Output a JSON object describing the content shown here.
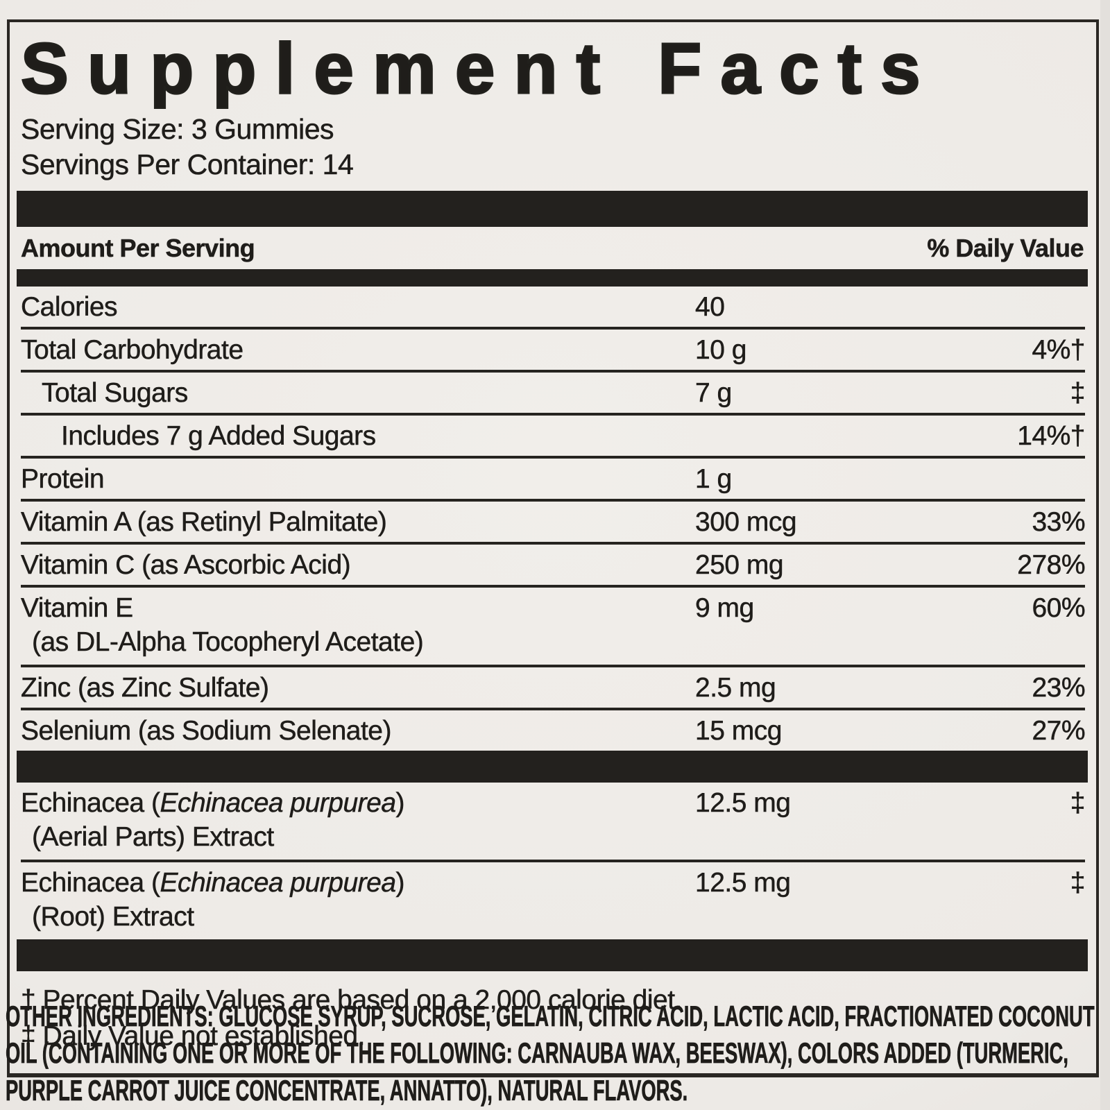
{
  "colors": {
    "ink": "#1f1d1a",
    "bar": "#23211e",
    "background": "#edeae6"
  },
  "panel": {
    "title": "Supplement Facts",
    "serving_size": "Serving Size: 3 Gummies",
    "servings_per_container": "Servings Per Container: 14",
    "header_left": "Amount Per Serving",
    "header_right": "% Daily Value",
    "rows": [
      {
        "label": "Calories",
        "amount": "40",
        "dv": ""
      },
      {
        "label": "Total Carbohydrate",
        "amount": "10 g",
        "dv": "4%†"
      },
      {
        "label": "Total Sugars",
        "indent": 1,
        "amount": "7 g",
        "dv": "‡"
      },
      {
        "label": "Includes 7 g Added Sugars",
        "indent": 2,
        "amount": "",
        "dv": "14%†"
      },
      {
        "label": "Protein",
        "amount": "1 g",
        "dv": ""
      },
      {
        "label": "Vitamin A (as Retinyl Palmitate)",
        "amount": "300 mcg",
        "dv": "33%"
      },
      {
        "label": "Vitamin C (as Ascorbic Acid)",
        "amount": "250 mg",
        "dv": "278%"
      },
      {
        "label": "Vitamin E",
        "sub": "(as DL-Alpha Tocopheryl Acetate)",
        "amount": "9 mg",
        "dv": "60%"
      },
      {
        "label": "Zinc (as Zinc Sulfate)",
        "amount": "2.5 mg",
        "dv": "23%"
      },
      {
        "label": "Selenium (as Sodium Selenate)",
        "amount": "15 mcg",
        "dv": "27%",
        "section_end": true
      },
      {
        "label_pre": "Echinacea (",
        "label_italic": "Echinacea purpurea",
        "label_post": ")",
        "sub": "(Aerial Parts) Extract",
        "amount": "12.5 mg",
        "dv": "‡"
      },
      {
        "label_pre": "Echinacea (",
        "label_italic": "Echinacea purpurea",
        "label_post": ")",
        "sub": "(Root) Extract",
        "amount": "12.5 mg",
        "dv": "‡",
        "section_end": true
      }
    ],
    "footnotes": [
      "† Percent Daily Values are based on a 2,000 calorie diet.",
      "‡ Daily Value not established."
    ]
  },
  "other_ingredients": {
    "lead": "OTHER INGREDIENTS:",
    "text": " GLUCOSE SYRUP, SUCROSE, GELATIN, CITRIC ACID, LACTIC ACID, FRACTIONATED COCONUT OIL (CONTAINING ONE OR MORE OF THE FOLLOWING: CARNAUBA WAX, BEESWAX), COLORS ADDED (TURMERIC, PURPLE CARROT JUICE CONCENTRATE, ANNATTO), NATURAL FLAVORS."
  }
}
